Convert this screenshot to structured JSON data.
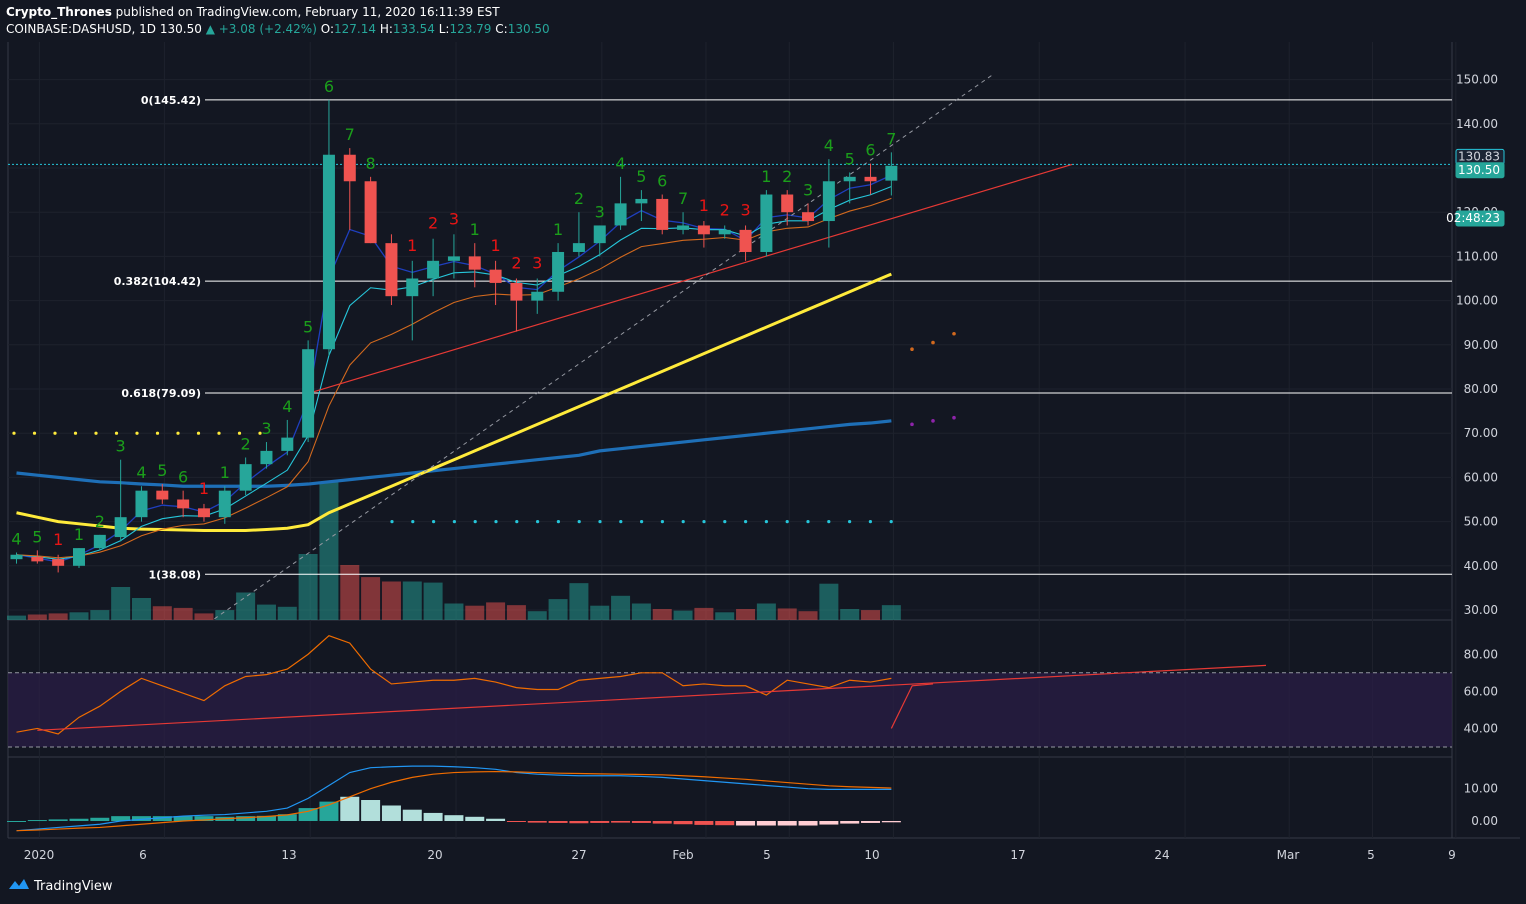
{
  "header": {
    "author": "Crypto_Thrones",
    "published_text": "published on TradingView.com, February 11, 2020 16:11:39 EST",
    "symbol": "COINBASE:DASHUSD, 1D",
    "last": "130.50",
    "change": "▲ +3.08 (+2.42%)",
    "o_label": "O:",
    "o": "127.14",
    "h_label": "H:",
    "h": "133.54",
    "l_label": "L:",
    "l": "123.79",
    "c_label": "C:",
    "c": "130.50"
  },
  "footer": {
    "brand": "TradingView"
  },
  "price_axis": {
    "ticks": [
      "150.00",
      "140.00",
      "130.00",
      "120.00",
      "110.00",
      "100.00",
      "90.00",
      "80.00",
      "70.00",
      "60.00",
      "50.00",
      "40.00",
      "30.00"
    ],
    "badges": [
      "130.83",
      "130.50",
      "02:48:23"
    ]
  },
  "rsi_axis": {
    "ticks": [
      "80.00",
      "60.00",
      "40.00"
    ]
  },
  "macd_axis": {
    "ticks": [
      "10.00",
      "0.00"
    ]
  },
  "time_axis": {
    "labels": [
      "2020",
      "6",
      "13",
      "20",
      "27",
      "Feb",
      "5",
      "10",
      "17",
      "24",
      "Mar",
      "5",
      "9"
    ]
  },
  "fib_labels": [
    "0(145.42)",
    "0.382(104.42)",
    "0.618(79.09)",
    "1(38.08)"
  ],
  "colors": {
    "bg": "#131722",
    "up": "#26a69a",
    "down": "#ef5350",
    "ma_yellow": "#ffeb3b",
    "ma_blue": "#1e6fb7",
    "seq_green": "#1b9e1b",
    "seq_red": "#e81515"
  },
  "chart_data": {
    "type": "candlestick",
    "symbol": "COINBASE:DASHUSD",
    "timeframe": "1D",
    "ylim": [
      28,
      155
    ],
    "candles": [
      {
        "o": 41.5,
        "h": 43,
        "l": 40.5,
        "c": 42.5
      },
      {
        "o": 42,
        "h": 43.5,
        "l": 40.5,
        "c": 41
      },
      {
        "o": 41.5,
        "h": 42.5,
        "l": 38.5,
        "c": 40
      },
      {
        "o": 40,
        "h": 44,
        "l": 39.5,
        "c": 44
      },
      {
        "o": 44,
        "h": 47,
        "l": 43.5,
        "c": 47
      },
      {
        "o": 46.5,
        "h": 64,
        "l": 45.5,
        "c": 51
      },
      {
        "o": 51,
        "h": 58,
        "l": 50,
        "c": 57
      },
      {
        "o": 57,
        "h": 58.5,
        "l": 54,
        "c": 55
      },
      {
        "o": 55,
        "h": 57,
        "l": 51,
        "c": 53
      },
      {
        "o": 53,
        "h": 54,
        "l": 50,
        "c": 51
      },
      {
        "o": 51,
        "h": 58,
        "l": 49.5,
        "c": 57
      },
      {
        "o": 57,
        "h": 64.5,
        "l": 56,
        "c": 63
      },
      {
        "o": 63,
        "h": 68,
        "l": 62,
        "c": 66
      },
      {
        "o": 66,
        "h": 73,
        "l": 65,
        "c": 69
      },
      {
        "o": 69,
        "h": 91,
        "l": 68,
        "c": 89
      },
      {
        "o": 89,
        "h": 145.4,
        "l": 87.5,
        "c": 133
      },
      {
        "o": 133,
        "h": 134.5,
        "l": 116,
        "c": 127
      },
      {
        "o": 127,
        "h": 128,
        "l": 113,
        "c": 113
      },
      {
        "o": 113,
        "h": 115,
        "l": 99,
        "c": 101
      },
      {
        "o": 101,
        "h": 109,
        "l": 91,
        "c": 105
      },
      {
        "o": 105,
        "h": 114,
        "l": 101,
        "c": 109
      },
      {
        "o": 109,
        "h": 115,
        "l": 105,
        "c": 110
      },
      {
        "o": 110,
        "h": 113,
        "l": 103,
        "c": 107
      },
      {
        "o": 107,
        "h": 109,
        "l": 99,
        "c": 104
      },
      {
        "o": 104,
        "h": 105,
        "l": 93,
        "c": 100
      },
      {
        "o": 100,
        "h": 105,
        "l": 97,
        "c": 102
      },
      {
        "o": 102,
        "h": 113,
        "l": 100,
        "c": 111
      },
      {
        "o": 111,
        "h": 120,
        "l": 110,
        "c": 113
      },
      {
        "o": 113,
        "h": 117,
        "l": 110,
        "c": 117
      },
      {
        "o": 117,
        "h": 128,
        "l": 116,
        "c": 122
      },
      {
        "o": 122,
        "h": 125,
        "l": 118,
        "c": 123
      },
      {
        "o": 123,
        "h": 124,
        "l": 115,
        "c": 116
      },
      {
        "o": 116,
        "h": 120,
        "l": 115,
        "c": 117
      },
      {
        "o": 117,
        "h": 118,
        "l": 112,
        "c": 115
      },
      {
        "o": 115,
        "h": 117,
        "l": 114,
        "c": 116
      },
      {
        "o": 116,
        "h": 117,
        "l": 109,
        "c": 111
      },
      {
        "o": 111,
        "h": 125,
        "l": 110,
        "c": 124
      },
      {
        "o": 124,
        "h": 125,
        "l": 117,
        "c": 120
      },
      {
        "o": 120,
        "h": 122,
        "l": 117,
        "c": 118
      },
      {
        "o": 118,
        "h": 132,
        "l": 112,
        "c": 127
      },
      {
        "o": 127,
        "h": 129,
        "l": 122,
        "c": 128
      },
      {
        "o": 128,
        "h": 131,
        "l": 124,
        "c": 127
      },
      {
        "o": 127.14,
        "h": 133.54,
        "l": 123.79,
        "c": 130.5
      }
    ],
    "volume_relative": [
      0.08,
      0.1,
      0.12,
      0.14,
      0.18,
      0.6,
      0.4,
      0.25,
      0.22,
      0.12,
      0.18,
      0.5,
      0.28,
      0.24,
      1.2,
      2.5,
      1.0,
      0.78,
      0.7,
      0.7,
      0.68,
      0.3,
      0.26,
      0.32,
      0.27,
      0.16,
      0.38,
      0.67,
      0.26,
      0.44,
      0.3,
      0.2,
      0.17,
      0.22,
      0.14,
      0.2,
      0.3,
      0.21,
      0.16,
      0.66,
      0.2,
      0.18,
      0.27
    ],
    "ma_blue_long": [
      61,
      60.5,
      60,
      59.5,
      59,
      58.8,
      58.5,
      58.3,
      58,
      58,
      58,
      58,
      58,
      58.2,
      58.5,
      59,
      59.5,
      60,
      60.5,
      61,
      61.5,
      62,
      62.5,
      63,
      63.5,
      64,
      64.5,
      65,
      66,
      66.5,
      67,
      67.5,
      68,
      68.5,
      69,
      69.5,
      70,
      70.5,
      71,
      71.5,
      72,
      72.3,
      72.8
    ],
    "ma_yellow": [
      52,
      51,
      50,
      49.5,
      49,
      48.5,
      48.3,
      48.2,
      48.1,
      48,
      48,
      48,
      48.2,
      48.5,
      49.3,
      52,
      54,
      56,
      58,
      60,
      62,
      64,
      66,
      68,
      70,
      72,
      74,
      76,
      78,
      80,
      82,
      84,
      86,
      88,
      90,
      92,
      94,
      96,
      98,
      100,
      102,
      104,
      106
    ],
    "fibonacci": [
      {
        "level": "0",
        "price": 145.42
      },
      {
        "level": "0.382",
        "price": 104.42
      },
      {
        "level": "0.618",
        "price": 79.09
      },
      {
        "level": "1",
        "price": 38.08
      }
    ],
    "td_sequential": [
      {
        "i": 0,
        "t": "4",
        "c": "g"
      },
      {
        "i": 1,
        "t": "5",
        "c": "g"
      },
      {
        "i": 2,
        "t": "1",
        "c": "r"
      },
      {
        "i": 3,
        "t": "1",
        "c": "g"
      },
      {
        "i": 4,
        "t": "2",
        "c": "g"
      },
      {
        "i": 5,
        "t": "3",
        "c": "g"
      },
      {
        "i": 6,
        "t": "4",
        "c": "g"
      },
      {
        "i": 7,
        "t": "5",
        "c": "g"
      },
      {
        "i": 8,
        "t": "6",
        "c": "g"
      },
      {
        "i": 9,
        "t": "1",
        "c": "r"
      },
      {
        "i": 10,
        "t": "1",
        "c": "g"
      },
      {
        "i": 11,
        "t": "2",
        "c": "g"
      },
      {
        "i": 12,
        "t": "3",
        "c": "g"
      },
      {
        "i": 13,
        "t": "4",
        "c": "g"
      },
      {
        "i": 14,
        "t": "5",
        "c": "g"
      },
      {
        "i": 15,
        "t": "6",
        "c": "g"
      },
      {
        "i": 16,
        "t": "7",
        "c": "g"
      },
      {
        "i": 17,
        "t": "8",
        "c": "g"
      },
      {
        "i": 19,
        "t": "1",
        "c": "r"
      },
      {
        "i": 20,
        "t": "2",
        "c": "r"
      },
      {
        "i": 21,
        "t": "3",
        "c": "r"
      },
      {
        "i": 22,
        "t": "1",
        "c": "g"
      },
      {
        "i": 23,
        "t": "1",
        "c": "r"
      },
      {
        "i": 24,
        "t": "2",
        "c": "r"
      },
      {
        "i": 25,
        "t": "3",
        "c": "r"
      },
      {
        "i": 26,
        "t": "1",
        "c": "g"
      },
      {
        "i": 27,
        "t": "2",
        "c": "g"
      },
      {
        "i": 28,
        "t": "3",
        "c": "g"
      },
      {
        "i": 29,
        "t": "4",
        "c": "g"
      },
      {
        "i": 30,
        "t": "5",
        "c": "g"
      },
      {
        "i": 31,
        "t": "6",
        "c": "g"
      },
      {
        "i": 32,
        "t": "7",
        "c": "g"
      },
      {
        "i": 33,
        "t": "1",
        "c": "r"
      },
      {
        "i": 34,
        "t": "2",
        "c": "r"
      },
      {
        "i": 35,
        "t": "3",
        "c": "r"
      },
      {
        "i": 36,
        "t": "1",
        "c": "g"
      },
      {
        "i": 37,
        "t": "2",
        "c": "g"
      },
      {
        "i": 38,
        "t": "3",
        "c": "g"
      },
      {
        "i": 39,
        "t": "4",
        "c": "g"
      },
      {
        "i": 40,
        "t": "5",
        "c": "g"
      },
      {
        "i": 41,
        "t": "6",
        "c": "g"
      },
      {
        "i": 42,
        "t": "7",
        "c": "g"
      }
    ],
    "rsi": [
      38,
      40,
      37,
      46,
      52,
      60,
      67,
      63,
      59,
      55,
      63,
      68,
      69,
      72,
      80,
      90,
      86,
      72,
      64,
      65,
      66,
      66,
      67,
      65,
      62,
      61,
      61,
      66,
      67,
      68,
      70,
      70,
      63,
      64,
      63,
      63,
      58,
      66,
      64,
      62,
      66,
      65,
      67
    ],
    "macd_line": [
      -3,
      -2.5,
      -2,
      -1.5,
      -1,
      0,
      0.5,
      1,
      1.5,
      1.8,
      2,
      2.5,
      3,
      4,
      7,
      11,
      15,
      16.5,
      16.8,
      17,
      17,
      16.8,
      16.5,
      16,
      15,
      14.5,
      14.2,
      14,
      14,
      14,
      13.8,
      13.5,
      13,
      12.5,
      12,
      11.5,
      11,
      10.5,
      10,
      9.8,
      9.8,
      9.8,
      9.8
    ],
    "macd_signal": [
      -3,
      -2.8,
      -2.5,
      -2.2,
      -2,
      -1.5,
      -1,
      -0.5,
      0,
      0.3,
      0.7,
      1,
      1.4,
      1.9,
      3,
      5,
      7.5,
      10,
      12,
      13.5,
      14.5,
      15,
      15.2,
      15.3,
      15.2,
      15,
      14.8,
      14.7,
      14.6,
      14.5,
      14.4,
      14.3,
      14,
      13.7,
      13.3,
      12.9,
      12.4,
      11.9,
      11.4,
      10.9,
      10.6,
      10.4,
      10.2
    ],
    "macd_hist": [
      0,
      0.3,
      0.5,
      0.7,
      1,
      1.5,
      1.5,
      1.5,
      1.5,
      1.5,
      1.3,
      1.5,
      1.6,
      2.1,
      4,
      6,
      7.5,
      6.5,
      4.8,
      3.5,
      2.5,
      1.8,
      1.3,
      0.7,
      -0.2,
      -0.5,
      -0.6,
      -0.7,
      -0.6,
      -0.5,
      -0.6,
      -0.8,
      -1,
      -1.2,
      -1.3,
      -1.4,
      -1.4,
      -1.4,
      -1.4,
      -1.1,
      -0.8,
      -0.6,
      -0.4
    ]
  }
}
